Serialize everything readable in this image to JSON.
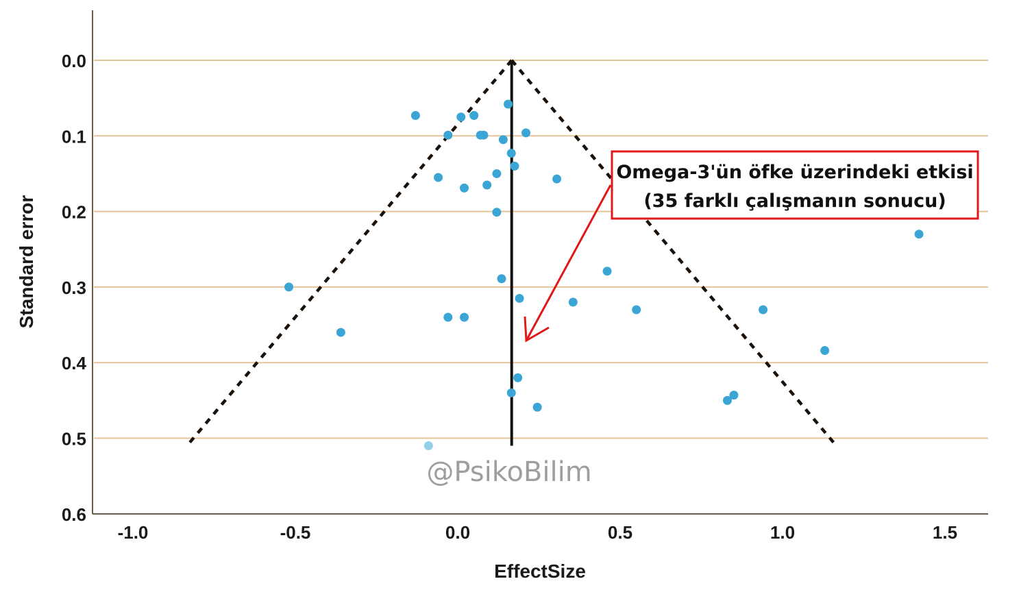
{
  "chart_data": {
    "type": "scatter",
    "title": "",
    "xlabel": "EffectSize",
    "ylabel": "Standard error",
    "xlim": [
      -1.15,
      1.6
    ],
    "ylim": [
      0.0,
      0.6
    ],
    "y_inverted": true,
    "x_ticks": [
      "-1.0",
      "-0.5",
      "0.0",
      "0.5",
      "1.0",
      "1.5"
    ],
    "x_tick_values": [
      -1.0,
      -0.5,
      0.0,
      0.5,
      1.0,
      1.5
    ],
    "y_ticks": [
      "0.0",
      "0.1",
      "0.2",
      "0.3",
      "0.4",
      "0.5",
      "0.6"
    ],
    "y_tick_values": [
      0.0,
      0.1,
      0.2,
      0.3,
      0.4,
      0.5,
      0.6
    ],
    "grid": "horizontal",
    "pooled_effect": 0.166,
    "funnel_se_max": 0.51,
    "funnel_multiplier": 1.96,
    "points": [
      {
        "x": -0.13,
        "y": 0.073
      },
      {
        "x": 0.01,
        "y": 0.075
      },
      {
        "x": 0.05,
        "y": 0.073
      },
      {
        "x": 0.155,
        "y": 0.058
      },
      {
        "x": -0.03,
        "y": 0.099
      },
      {
        "x": 0.07,
        "y": 0.099
      },
      {
        "x": 0.08,
        "y": 0.099
      },
      {
        "x": 0.21,
        "y": 0.096
      },
      {
        "x": 0.14,
        "y": 0.105
      },
      {
        "x": 0.165,
        "y": 0.123
      },
      {
        "x": 0.175,
        "y": 0.14
      },
      {
        "x": 0.12,
        "y": 0.15
      },
      {
        "x": -0.06,
        "y": 0.155
      },
      {
        "x": 0.305,
        "y": 0.157
      },
      {
        "x": 0.09,
        "y": 0.165
      },
      {
        "x": 0.02,
        "y": 0.169
      },
      {
        "x": 0.12,
        "y": 0.201
      },
      {
        "x": 1.42,
        "y": 0.23
      },
      {
        "x": 0.46,
        "y": 0.279
      },
      {
        "x": 0.135,
        "y": 0.289
      },
      {
        "x": -0.52,
        "y": 0.3
      },
      {
        "x": 0.19,
        "y": 0.315
      },
      {
        "x": 0.355,
        "y": 0.32
      },
      {
        "x": 0.55,
        "y": 0.33
      },
      {
        "x": 0.94,
        "y": 0.33
      },
      {
        "x": -0.03,
        "y": 0.34
      },
      {
        "x": 0.02,
        "y": 0.34
      },
      {
        "x": -0.36,
        "y": 0.36
      },
      {
        "x": 1.13,
        "y": 0.384
      },
      {
        "x": 0.185,
        "y": 0.42
      },
      {
        "x": 0.165,
        "y": 0.44
      },
      {
        "x": 0.85,
        "y": 0.443
      },
      {
        "x": 0.83,
        "y": 0.45
      },
      {
        "x": 0.245,
        "y": 0.459
      },
      {
        "x": -0.09,
        "y": 0.51,
        "faint": true
      }
    ]
  },
  "annotation": {
    "line1": "Omega-3'ün öfke üzerindeki etkisi",
    "line2": "(35 farklı çalışmanın sonucu)",
    "color": "#e01818"
  },
  "watermark": "@PsikoBilim",
  "colors": {
    "point": "#3ba6d6",
    "grid": "#e6c49a",
    "funnel": "#1a120a"
  }
}
